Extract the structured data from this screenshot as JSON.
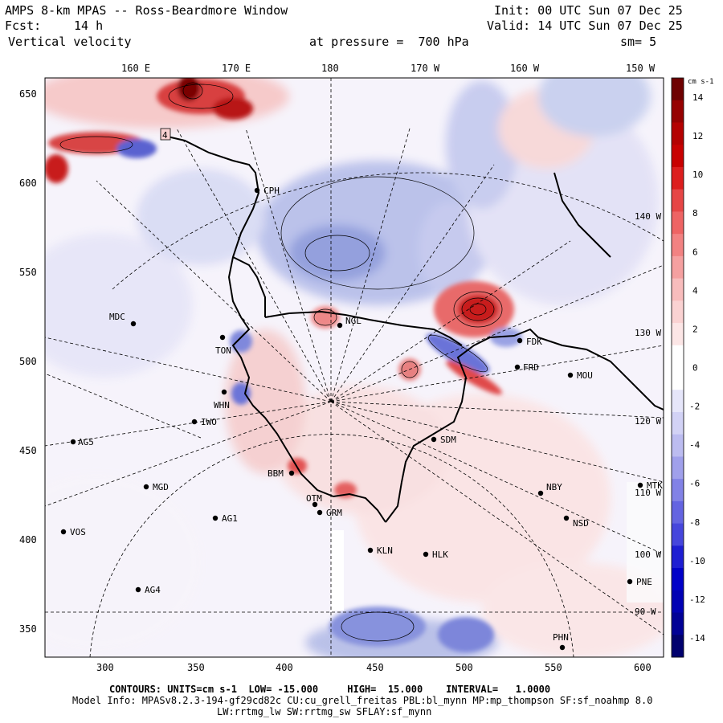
{
  "header": {
    "title": "AMPS 8-km MPAS -- Ross-Beardmore Window",
    "init": "Init: 00 UTC Sun 07 Dec 25",
    "fcst_label": "Fcst:",
    "fcst_value": "14 h",
    "valid": "Valid: 14 UTC Sun 07 Dec 25",
    "field": "Vertical velocity",
    "level": "at pressure =  700 hPa",
    "smoothing": "sm= 5"
  },
  "top_axis": [
    "160 E",
    "170 E",
    "180",
    "170 W",
    "160 W",
    "150 W"
  ],
  "left_axis": [
    "650",
    "600",
    "550",
    "500",
    "450",
    "400",
    "350"
  ],
  "bottom_axis": [
    "300",
    "350",
    "400",
    "450",
    "500",
    "550",
    "600"
  ],
  "stations": [
    {
      "id": "CPH"
    },
    {
      "id": "MDC"
    },
    {
      "id": "NGL"
    },
    {
      "id": "FDK"
    },
    {
      "id": "TON"
    },
    {
      "id": "FRD"
    },
    {
      "id": "MOU"
    },
    {
      "id": "WHN"
    },
    {
      "id": "IWO"
    },
    {
      "id": "AG5"
    },
    {
      "id": "SDM"
    },
    {
      "id": "BBM"
    },
    {
      "id": "MGD"
    },
    {
      "id": "NBY"
    },
    {
      "id": "MTK"
    },
    {
      "id": "OTM"
    },
    {
      "id": "GRM"
    },
    {
      "id": "AG1"
    },
    {
      "id": "NSD"
    },
    {
      "id": "VOS"
    },
    {
      "id": "KLN"
    },
    {
      "id": "HLK"
    },
    {
      "id": "AG4"
    },
    {
      "id": "PNE"
    },
    {
      "id": "PHN"
    }
  ],
  "graticule_labels": [
    "140 W",
    "130 W",
    "120 W",
    "110 W",
    "100 W",
    "90 W"
  ],
  "box_label": "4",
  "colorbar": {
    "units": "cm s-1",
    "ticks": [
      "14",
      "12",
      "10",
      "8",
      "6",
      "4",
      "2",
      "0",
      "-2",
      "-4",
      "-6",
      "-8",
      "-10",
      "-12",
      "-14"
    ],
    "colors": [
      "#6e0000",
      "#960000",
      "#b40000",
      "#c80000",
      "#dc1e1e",
      "#e64646",
      "#ee6464",
      "#f28282",
      "#f5a0a0",
      "#f8bcbc",
      "#fad2d2",
      "#fce6e6",
      "#ffffff",
      "#ffffff",
      "#e6e6fa",
      "#d2d2f5",
      "#bcbcf0",
      "#a0a0eb",
      "#8282e6",
      "#6464e1",
      "#4646dc",
      "#1e1ed2",
      "#0000c8",
      "#0000b4",
      "#000096",
      "#00006e"
    ]
  },
  "footer": {
    "contours_label": "CONTOURS:",
    "units": "UNITS=cm s-1",
    "low": "LOW= -15.000",
    "high": "HIGH=  15.000",
    "interval": "INTERVAL=   1.0000",
    "model_info": "Model Info: MPASv8.2.3-194-gf29cd82c CU:cu_grell_freitas PBL:bl_mynn MP:mp_thompson SF:sf_noahmp 8.0",
    "model_info2": "LW:rrtmg_lw SW:rrtmg_sw SFLAY:sf_mynn"
  }
}
